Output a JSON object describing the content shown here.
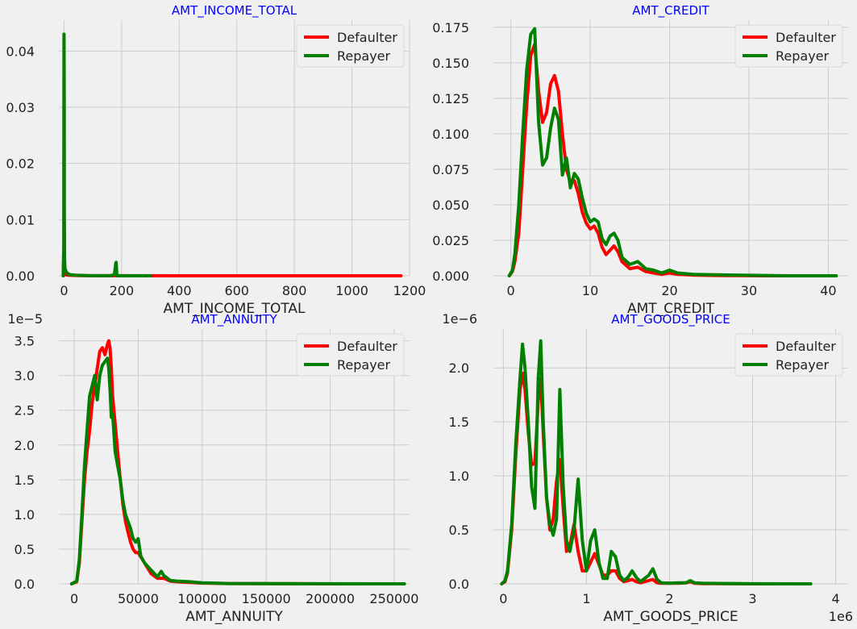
{
  "figure": {
    "background": "#f0f0f0",
    "title_color": "#0000ff",
    "grid_color": "#cbcbcb"
  },
  "legend": {
    "entries": [
      {
        "name": "Defaulter",
        "color": "#ff0000"
      },
      {
        "name": "Repayer",
        "color": "#008000"
      }
    ],
    "placement": "top-right"
  },
  "chart_data": [
    {
      "type": "line",
      "title": "AMT_INCOME_TOTAL",
      "xlabel": "AMT_INCOME_TOTAL",
      "ylabel": "",
      "xlim": [
        -18,
        1200
      ],
      "ylim": [
        0,
        0.0455
      ],
      "xticks": [
        0,
        200,
        400,
        600,
        800,
        1000,
        1200
      ],
      "xtick_labels": [
        "0",
        "200",
        "400",
        "600",
        "800",
        "1000",
        "1200"
      ],
      "yticks": [
        0,
        0.01,
        0.02,
        0.03,
        0.04
      ],
      "ytick_labels": [
        "0.00",
        "0.01",
        "0.02",
        "0.03",
        "0.04"
      ],
      "offset_text": "",
      "grid": true,
      "series": [
        {
          "name": "Defaulter",
          "color": "#ff0000",
          "x": [
            -3,
            -1,
            0,
            0.5,
            1,
            2,
            3,
            5,
            8,
            15,
            50,
            100,
            200,
            400,
            600,
            800,
            1000,
            1170
          ],
          "y": [
            0,
            0.003,
            0.005,
            0.003,
            0.0006,
            0.0004,
            0.0003,
            0.0002,
            0.00015,
            0.0001,
            5e-05,
            2e-05,
            1e-05,
            0,
            0,
            0,
            0,
            0
          ]
        },
        {
          "name": "Repayer",
          "color": "#008000",
          "x": [
            -3,
            -1,
            -0.3,
            0,
            0.3,
            0.7,
            1,
            1.5,
            2,
            3,
            5,
            10,
            20,
            40,
            80,
            120,
            160,
            175,
            180,
            181,
            183,
            185,
            200,
            300
          ],
          "y": [
            0,
            0.005,
            0.035,
            0.043,
            0.041,
            0.03,
            0.012,
            0.005,
            0.003,
            0.0015,
            0.001,
            0.0005,
            0.0002,
            0.0001,
            3e-05,
            2e-05,
            2e-05,
            0.0002,
            0.0023,
            0.0024,
            0.0005,
            0,
            0,
            0
          ]
        }
      ]
    },
    {
      "type": "line",
      "title": "AMT_CREDIT",
      "xlabel": "AMT_CREDIT",
      "ylabel": "",
      "xlim": [
        -2.2,
        42.5
      ],
      "ylim": [
        0,
        0.18
      ],
      "xticks": [
        0,
        10,
        20,
        30,
        40
      ],
      "xtick_labels": [
        "0",
        "10",
        "20",
        "30",
        "40"
      ],
      "yticks": [
        0,
        0.025,
        0.05,
        0.075,
        0.1,
        0.125,
        0.15,
        0.175
      ],
      "ytick_labels": [
        "0.000",
        "0.025",
        "0.050",
        "0.075",
        "0.100",
        "0.125",
        "0.150",
        "0.175"
      ],
      "offset_text": "",
      "grid": true,
      "series": [
        {
          "name": "Defaulter",
          "color": "#ff0000",
          "x": [
            -0.2,
            0.2,
            0.5,
            1,
            1.5,
            2,
            2.5,
            3,
            3.5,
            4,
            4.5,
            5,
            5.5,
            6,
            6.5,
            7,
            7.5,
            8,
            8.5,
            9,
            9.5,
            10,
            10.5,
            11,
            11.5,
            12,
            12.5,
            13,
            13.5,
            14,
            15,
            16,
            17,
            18,
            19,
            20,
            21,
            22,
            23,
            25,
            28,
            32,
            35,
            41
          ],
          "y": [
            0,
            0.003,
            0.01,
            0.03,
            0.075,
            0.12,
            0.155,
            0.163,
            0.13,
            0.108,
            0.115,
            0.135,
            0.141,
            0.13,
            0.1,
            0.075,
            0.066,
            0.067,
            0.058,
            0.045,
            0.037,
            0.033,
            0.035,
            0.03,
            0.02,
            0.015,
            0.018,
            0.021,
            0.017,
            0.01,
            0.005,
            0.006,
            0.003,
            0.002,
            0.001,
            0.002,
            0.001,
            0.0008,
            0.0005,
            0.0003,
            0.0001,
            0,
            0,
            0
          ]
        },
        {
          "name": "Repayer",
          "color": "#008000",
          "x": [
            -0.2,
            0.2,
            0.5,
            1,
            1.5,
            2,
            2.5,
            3,
            3.5,
            4,
            4.5,
            5,
            5.5,
            6,
            6.5,
            7,
            7.5,
            8,
            8.5,
            9,
            9.5,
            10,
            10.5,
            11,
            11.5,
            12,
            12.5,
            13,
            13.5,
            14,
            15,
            16,
            17,
            18,
            19,
            20,
            21,
            22,
            23,
            25,
            28,
            32,
            35,
            41
          ],
          "y": [
            0,
            0.004,
            0.015,
            0.05,
            0.1,
            0.145,
            0.17,
            0.174,
            0.108,
            0.078,
            0.083,
            0.104,
            0.118,
            0.11,
            0.071,
            0.083,
            0.062,
            0.072,
            0.068,
            0.055,
            0.044,
            0.038,
            0.04,
            0.038,
            0.026,
            0.022,
            0.028,
            0.03,
            0.025,
            0.013,
            0.008,
            0.01,
            0.005,
            0.004,
            0.002,
            0.004,
            0.002,
            0.0015,
            0.001,
            0.0008,
            0.0005,
            0.0002,
            0,
            0
          ]
        }
      ]
    },
    {
      "type": "line",
      "title": "AMT_ANNUITY",
      "xlabel": "AMT_ANNUITY",
      "ylabel": "",
      "xlim": [
        -12000,
        262000
      ],
      "ylim": [
        0,
        3.67
      ],
      "xticks": [
        0,
        50000,
        100000,
        150000,
        200000,
        250000
      ],
      "xtick_labels": [
        "0",
        "50000",
        "100000",
        "150000",
        "200000",
        "250000"
      ],
      "yticks": [
        0,
        0.5,
        1.0,
        1.5,
        2.0,
        2.5,
        3.0,
        3.5
      ],
      "ytick_labels": [
        "0.0",
        "0.5",
        "1.0",
        "1.5",
        "2.0",
        "2.5",
        "3.0",
        "3.5"
      ],
      "offset_text": "1e−5",
      "grid": true,
      "series": [
        {
          "name": "Defaulter",
          "color": "#ff0000",
          "x": [
            -2000,
            2000,
            4000,
            6000,
            8000,
            10000,
            12000,
            14000,
            16000,
            18000,
            20000,
            22000,
            24000,
            26000,
            27000,
            28000,
            29000,
            30000,
            32000,
            34000,
            36000,
            38000,
            40000,
            42000,
            44000,
            46000,
            48000,
            50000,
            55000,
            60000,
            65000,
            70000,
            75000,
            80000,
            90000,
            100000,
            120000,
            150000,
            200000,
            258000
          ],
          "y": [
            0,
            0.03,
            0.3,
            0.9,
            1.5,
            1.9,
            2.2,
            2.6,
            2.85,
            3.1,
            3.35,
            3.4,
            3.3,
            3.45,
            3.5,
            3.4,
            3.1,
            2.7,
            2.3,
            1.9,
            1.5,
            1.15,
            0.9,
            0.75,
            0.6,
            0.5,
            0.45,
            0.45,
            0.3,
            0.15,
            0.08,
            0.08,
            0.04,
            0.03,
            0.02,
            0.01,
            0.005,
            0.002,
            0,
            0
          ]
        },
        {
          "name": "Repayer",
          "color": "#008000",
          "x": [
            -2000,
            2000,
            4000,
            6000,
            8000,
            10000,
            12000,
            14000,
            16000,
            18000,
            20000,
            22000,
            24000,
            26000,
            27000,
            28000,
            29000,
            30000,
            32000,
            34000,
            36000,
            38000,
            40000,
            42000,
            44000,
            46000,
            48000,
            50000,
            52000,
            55000,
            60000,
            65000,
            68000,
            70000,
            75000,
            80000,
            90000,
            100000,
            120000,
            150000,
            200000,
            258000
          ],
          "y": [
            0,
            0.04,
            0.35,
            1.0,
            1.7,
            2.2,
            2.7,
            2.85,
            3.0,
            2.65,
            3.0,
            3.15,
            3.2,
            3.25,
            3.1,
            2.8,
            2.4,
            2.45,
            1.9,
            1.7,
            1.5,
            1.2,
            1.0,
            0.9,
            0.8,
            0.65,
            0.6,
            0.65,
            0.4,
            0.3,
            0.2,
            0.1,
            0.18,
            0.12,
            0.05,
            0.04,
            0.03,
            0.015,
            0.005,
            0.003,
            0.001,
            0
          ]
        }
      ]
    },
    {
      "type": "line",
      "title": "AMT_GOODS_PRICE",
      "xlabel": "AMT_GOODS_PRICE",
      "ylabel": "",
      "xlim": [
        -120000,
        4150000
      ],
      "ylim": [
        0,
        2.36
      ],
      "xticks": [
        0,
        1000000,
        2000000,
        3000000,
        4000000
      ],
      "xtick_labels": [
        "0",
        "1",
        "2",
        "3",
        "4"
      ],
      "yticks": [
        0,
        0.5,
        1.0,
        1.5,
        2.0
      ],
      "ytick_labels": [
        "0.0",
        "0.5",
        "1.0",
        "1.5",
        "2.0"
      ],
      "offset_text": "1e−6",
      "x_offset_text": "1e6",
      "grid": true,
      "series": [
        {
          "name": "Defaulter",
          "color": "#ff0000",
          "x": [
            -20000,
            20000,
            50000,
            100000,
            150000,
            200000,
            230000,
            260000,
            300000,
            340000,
            380000,
            420000,
            450000,
            480000,
            520000,
            560000,
            600000,
            640000,
            680000,
            720000,
            760000,
            800000,
            850000,
            900000,
            950000,
            1000000,
            1050000,
            1100000,
            1150000,
            1200000,
            1250000,
            1300000,
            1350000,
            1400000,
            1450000,
            1500000,
            1550000,
            1600000,
            1650000,
            1700000,
            1750000,
            1800000,
            1850000,
            1900000,
            2000000,
            2100000,
            2200000,
            2250000,
            2300000,
            2400000,
            3000000,
            3700000
          ],
          "y": [
            0,
            0.02,
            0.1,
            0.5,
            1.2,
            1.8,
            1.95,
            1.8,
            1.4,
            1.1,
            1.12,
            1.7,
            1.9,
            1.4,
            0.8,
            0.5,
            0.6,
            0.95,
            1.15,
            0.7,
            0.3,
            0.35,
            0.55,
            0.3,
            0.12,
            0.12,
            0.2,
            0.28,
            0.18,
            0.08,
            0.08,
            0.12,
            0.12,
            0.05,
            0.02,
            0.03,
            0.04,
            0.02,
            0.01,
            0.02,
            0.03,
            0.04,
            0.01,
            0.005,
            0.005,
            0.005,
            0.01,
            0.02,
            0.005,
            0.002,
            0,
            0
          ]
        },
        {
          "name": "Repayer",
          "color": "#008000",
          "x": [
            -20000,
            20000,
            50000,
            100000,
            150000,
            200000,
            230000,
            260000,
            300000,
            340000,
            380000,
            420000,
            450000,
            480000,
            520000,
            560000,
            600000,
            640000,
            680000,
            720000,
            760000,
            800000,
            850000,
            900000,
            950000,
            1000000,
            1050000,
            1100000,
            1150000,
            1200000,
            1250000,
            1300000,
            1350000,
            1400000,
            1450000,
            1500000,
            1550000,
            1600000,
            1650000,
            1700000,
            1750000,
            1800000,
            1850000,
            1900000,
            2000000,
            2100000,
            2200000,
            2250000,
            2300000,
            2400000,
            3000000,
            3700000
          ],
          "y": [
            0,
            0.03,
            0.12,
            0.55,
            1.3,
            1.9,
            2.22,
            2.0,
            1.5,
            0.9,
            0.7,
            1.9,
            2.25,
            1.5,
            0.8,
            0.55,
            0.45,
            0.6,
            1.8,
            0.9,
            0.4,
            0.3,
            0.5,
            0.97,
            0.4,
            0.12,
            0.4,
            0.5,
            0.2,
            0.05,
            0.05,
            0.3,
            0.25,
            0.08,
            0.03,
            0.06,
            0.12,
            0.06,
            0.02,
            0.05,
            0.08,
            0.14,
            0.04,
            0.01,
            0.005,
            0.01,
            0.01,
            0.03,
            0.01,
            0.005,
            0.001,
            0
          ]
        }
      ]
    }
  ]
}
